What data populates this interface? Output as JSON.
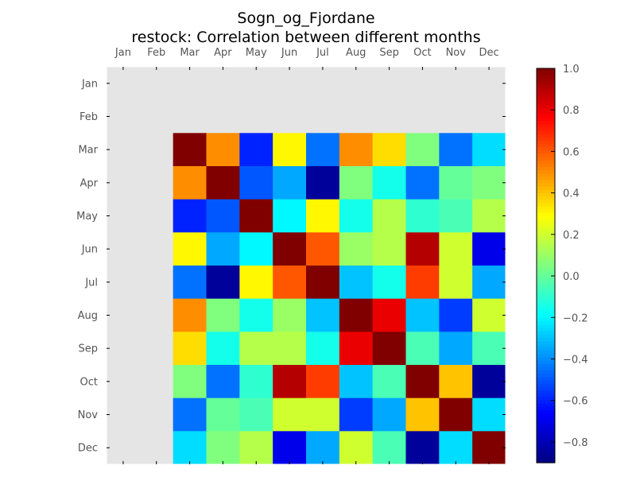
{
  "chart_data": {
    "type": "heatmap",
    "title": "Sogn_og_Fjordane",
    "subtitle": "restock: Correlation between different months",
    "x_labels": [
      "Jan",
      "Feb",
      "Mar",
      "Apr",
      "May",
      "Jun",
      "Jul",
      "Aug",
      "Sep",
      "Oct",
      "Nov",
      "Dec"
    ],
    "y_labels": [
      "Jan",
      "Feb",
      "Mar",
      "Apr",
      "May",
      "Jun",
      "Jul",
      "Aug",
      "Sep",
      "Oct",
      "Nov",
      "Dec"
    ],
    "values": [
      [
        null,
        null,
        null,
        null,
        null,
        null,
        null,
        null,
        null,
        null,
        null,
        null
      ],
      [
        null,
        null,
        null,
        null,
        null,
        null,
        null,
        null,
        null,
        null,
        null,
        null
      ],
      [
        null,
        null,
        1.0,
        0.5,
        -0.6,
        0.3,
        -0.45,
        0.5,
        0.35,
        0.05,
        -0.45,
        -0.25
      ],
      [
        null,
        null,
        0.5,
        1.0,
        -0.5,
        -0.35,
        -0.85,
        0.05,
        -0.15,
        -0.45,
        0.0,
        0.05
      ],
      [
        null,
        null,
        -0.6,
        -0.5,
        1.0,
        -0.2,
        0.3,
        -0.15,
        0.15,
        -0.1,
        -0.05,
        0.15
      ],
      [
        null,
        null,
        0.3,
        -0.35,
        -0.2,
        1.0,
        0.6,
        0.1,
        0.15,
        0.9,
        0.2,
        -0.7
      ],
      [
        null,
        null,
        -0.45,
        -0.85,
        0.3,
        0.6,
        1.0,
        -0.3,
        -0.15,
        0.65,
        0.2,
        -0.35
      ],
      [
        null,
        null,
        0.5,
        0.05,
        -0.15,
        0.1,
        -0.3,
        1.0,
        0.8,
        -0.3,
        -0.55,
        0.2
      ],
      [
        null,
        null,
        0.35,
        -0.15,
        0.15,
        0.15,
        -0.15,
        0.8,
        1.0,
        -0.05,
        -0.35,
        -0.05
      ],
      [
        null,
        null,
        0.05,
        -0.45,
        -0.1,
        0.9,
        0.65,
        -0.3,
        -0.05,
        1.0,
        0.4,
        -0.85
      ],
      [
        null,
        null,
        -0.45,
        0.0,
        -0.05,
        0.2,
        0.2,
        -0.55,
        -0.35,
        0.4,
        1.0,
        -0.25
      ],
      [
        null,
        null,
        -0.25,
        0.05,
        0.15,
        -0.7,
        -0.35,
        0.2,
        -0.05,
        -0.85,
        -0.25,
        1.0
      ]
    ],
    "colorbar_ticks": [
      "1.0",
      "0.8",
      "0.6",
      "0.4",
      "0.2",
      "0.0",
      "−0.2",
      "−0.4",
      "−0.6",
      "−0.8"
    ],
    "colorbar_tick_values": [
      1.0,
      0.8,
      0.6,
      0.4,
      0.2,
      0.0,
      -0.2,
      -0.4,
      -0.6,
      -0.8
    ],
    "vmin": -0.9,
    "vmax": 1.0,
    "colormap": "jet",
    "missing_color": "#e5e5e5"
  }
}
